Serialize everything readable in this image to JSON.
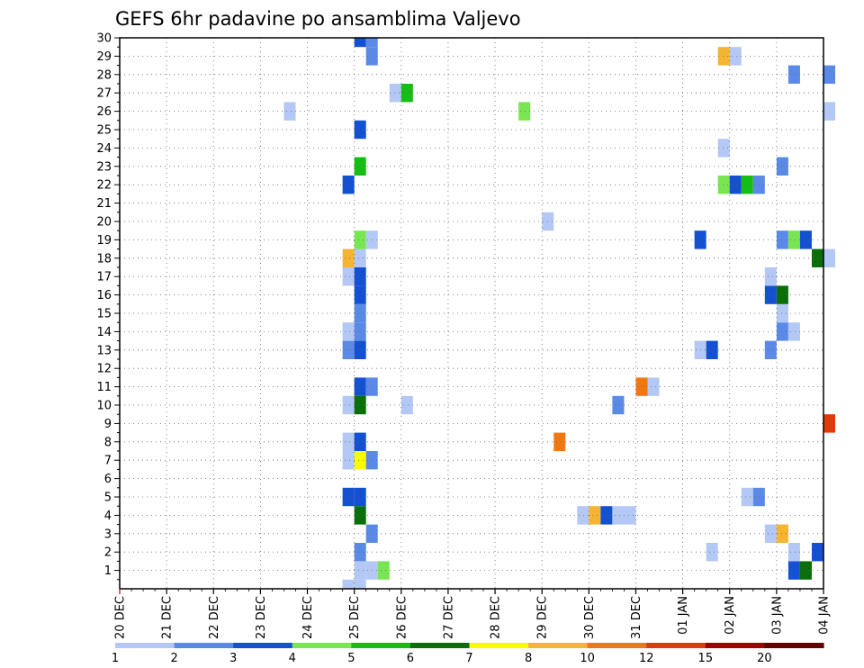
{
  "chart_data": {
    "type": "heatmap",
    "title": "GEFS 6hr padavine po ansamblima Valjevo",
    "x_labels": [
      "20 DEC",
      "21 DEC",
      "22 DEC",
      "23 DEC",
      "24 DEC",
      "25 DEC",
      "26 DEC",
      "27 DEC",
      "28 DEC",
      "29 DEC",
      "30 DEC",
      "31 DEC",
      "01 JAN",
      "02 JAN",
      "03 JAN",
      "04 JAN"
    ],
    "y_labels": [
      "1",
      "2",
      "3",
      "4",
      "5",
      "6",
      "7",
      "8",
      "9",
      "10",
      "11",
      "12",
      "13",
      "14",
      "15",
      "16",
      "17",
      "18",
      "19",
      "20",
      "21",
      "22",
      "23",
      "24",
      "25",
      "26",
      "27",
      "28",
      "29",
      "30"
    ],
    "xlim": [
      "20 DEC",
      "04 JAN"
    ],
    "ylim": [
      0,
      30
    ],
    "grid": true,
    "colorbar": {
      "labels": [
        "1",
        "2",
        "3",
        "4",
        "5",
        "6",
        "7",
        "8",
        "10",
        "12",
        "15",
        "20"
      ],
      "colors": [
        "#b4c8f5",
        "#5a8ae6",
        "#1450d2",
        "#78e650",
        "#14be14",
        "#0a6e0a",
        "#fafa00",
        "#f5b432",
        "#f07814",
        "#dc3c0a",
        "#a00000",
        "#640000"
      ]
    },
    "cells": [
      {
        "member": 0,
        "time": "24 DEC 18",
        "class": 1
      },
      {
        "member": 0,
        "time": "25 DEC 00",
        "class": 1
      },
      {
        "member": 1,
        "time": "25 DEC 00",
        "class": 1
      },
      {
        "member": 1,
        "time": "25 DEC 06",
        "class": 1
      },
      {
        "member": 1,
        "time": "25 DEC 12",
        "class": 4
      },
      {
        "member": 1,
        "time": "03 JAN 06",
        "class": 3
      },
      {
        "member": 1,
        "time": "03 JAN 12",
        "class": 6
      },
      {
        "member": 2,
        "time": "25 DEC 00",
        "class": 2
      },
      {
        "member": 2,
        "time": "01 JAN 12",
        "class": 1
      },
      {
        "member": 2,
        "time": "03 JAN 06",
        "class": 1
      },
      {
        "member": 2,
        "time": "03 JAN 18",
        "class": 3
      },
      {
        "member": 3,
        "time": "25 DEC 06",
        "class": 2
      },
      {
        "member": 3,
        "time": "02 JAN 18",
        "class": 1
      },
      {
        "member": 3,
        "time": "03 JAN 00",
        "class": 8
      },
      {
        "member": 4,
        "time": "25 DEC 00",
        "class": 6
      },
      {
        "member": 4,
        "time": "29 DEC 18",
        "class": 1
      },
      {
        "member": 4,
        "time": "30 DEC 00",
        "class": 8
      },
      {
        "member": 4,
        "time": "30 DEC 06",
        "class": 3
      },
      {
        "member": 4,
        "time": "30 DEC 12",
        "class": 1
      },
      {
        "member": 4,
        "time": "30 DEC 18",
        "class": 1
      },
      {
        "member": 5,
        "time": "24 DEC 18",
        "class": 3
      },
      {
        "member": 5,
        "time": "25 DEC 00",
        "class": 3
      },
      {
        "member": 5,
        "time": "02 JAN 06",
        "class": 1
      },
      {
        "member": 5,
        "time": "02 JAN 12",
        "class": 2
      },
      {
        "member": 7,
        "time": "24 DEC 18",
        "class": 1
      },
      {
        "member": 7,
        "time": "25 DEC 00",
        "class": 7
      },
      {
        "member": 7,
        "time": "25 DEC 06",
        "class": 2
      },
      {
        "member": 8,
        "time": "24 DEC 18",
        "class": 1
      },
      {
        "member": 8,
        "time": "25 DEC 00",
        "class": 3
      },
      {
        "member": 8,
        "time": "29 DEC 06",
        "class": 9
      },
      {
        "member": 9,
        "time": "04 JAN 00",
        "class": 10
      },
      {
        "member": 10,
        "time": "24 DEC 18",
        "class": 1
      },
      {
        "member": 10,
        "time": "25 DEC 00",
        "class": 6
      },
      {
        "member": 10,
        "time": "26 DEC 00",
        "class": 1
      },
      {
        "member": 10,
        "time": "30 DEC 12",
        "class": 2
      },
      {
        "member": 11,
        "time": "25 DEC 00",
        "class": 3
      },
      {
        "member": 11,
        "time": "25 DEC 06",
        "class": 2
      },
      {
        "member": 11,
        "time": "31 DEC 00",
        "class": 9
      },
      {
        "member": 11,
        "time": "31 DEC 06",
        "class": 1
      },
      {
        "member": 13,
        "time": "24 DEC 18",
        "class": 2
      },
      {
        "member": 13,
        "time": "25 DEC 00",
        "class": 3
      },
      {
        "member": 13,
        "time": "01 JAN 06",
        "class": 1
      },
      {
        "member": 13,
        "time": "01 JAN 12",
        "class": 3
      },
      {
        "member": 13,
        "time": "02 JAN 18",
        "class": 2
      },
      {
        "member": 14,
        "time": "24 DEC 18",
        "class": 1
      },
      {
        "member": 14,
        "time": "25 DEC 00",
        "class": 2
      },
      {
        "member": 14,
        "time": "03 JAN 00",
        "class": 2
      },
      {
        "member": 14,
        "time": "03 JAN 06",
        "class": 1
      },
      {
        "member": 15,
        "time": "25 DEC 00",
        "class": 2
      },
      {
        "member": 15,
        "time": "03 JAN 00",
        "class": 1
      },
      {
        "member": 16,
        "time": "25 DEC 00",
        "class": 3
      },
      {
        "member": 16,
        "time": "02 JAN 18",
        "class": 3
      },
      {
        "member": 16,
        "time": "03 JAN 00",
        "class": 6
      },
      {
        "member": 17,
        "time": "24 DEC 18",
        "class": 1
      },
      {
        "member": 17,
        "time": "25 DEC 00",
        "class": 3
      },
      {
        "member": 17,
        "time": "02 JAN 18",
        "class": 1
      },
      {
        "member": 18,
        "time": "24 DEC 18",
        "class": 8
      },
      {
        "member": 18,
        "time": "25 DEC 00",
        "class": 1
      },
      {
        "member": 18,
        "time": "03 JAN 18",
        "class": 6
      },
      {
        "member": 18,
        "time": "04 JAN 00",
        "class": 1
      },
      {
        "member": 19,
        "time": "25 DEC 00",
        "class": 4
      },
      {
        "member": 19,
        "time": "25 DEC 06",
        "class": 1
      },
      {
        "member": 19,
        "time": "01 JAN 06",
        "class": 3
      },
      {
        "member": 19,
        "time": "03 JAN 00",
        "class": 2
      },
      {
        "member": 19,
        "time": "03 JAN 06",
        "class": 4
      },
      {
        "member": 19,
        "time": "03 JAN 12",
        "class": 3
      },
      {
        "member": 20,
        "time": "29 DEC 00",
        "class": 1
      },
      {
        "member": 22,
        "time": "24 DEC 18",
        "class": 3
      },
      {
        "member": 22,
        "time": "01 JAN 18",
        "class": 4
      },
      {
        "member": 22,
        "time": "02 JAN 00",
        "class": 3
      },
      {
        "member": 22,
        "time": "02 JAN 06",
        "class": 5
      },
      {
        "member": 22,
        "time": "02 JAN 12",
        "class": 2
      },
      {
        "member": 23,
        "time": "25 DEC 00",
        "class": 5
      },
      {
        "member": 23,
        "time": "03 JAN 00",
        "class": 2
      },
      {
        "member": 24,
        "time": "01 JAN 18",
        "class": 1
      },
      {
        "member": 25,
        "time": "25 DEC 00",
        "class": 3
      },
      {
        "member": 26,
        "time": "23 DEC 12",
        "class": 1
      },
      {
        "member": 26,
        "time": "28 DEC 12",
        "class": 4
      },
      {
        "member": 26,
        "time": "04 JAN 00",
        "class": 1
      },
      {
        "member": 27,
        "time": "25 DEC 18",
        "class": 1
      },
      {
        "member": 27,
        "time": "26 DEC 00",
        "class": 5
      },
      {
        "member": 28,
        "time": "03 JAN 06",
        "class": 2
      },
      {
        "member": 28,
        "time": "04 JAN 00",
        "class": 2
      },
      {
        "member": 29,
        "time": "01 JAN 18",
        "class": 8
      },
      {
        "member": 29,
        "time": "02 JAN 00",
        "class": 1
      },
      {
        "member": 29,
        "time": "25 DEC 06",
        "class": 2
      },
      {
        "member": 30,
        "time": "25 DEC 00",
        "class": 3
      },
      {
        "member": 30,
        "time": "25 DEC 06",
        "class": 2
      }
    ]
  }
}
